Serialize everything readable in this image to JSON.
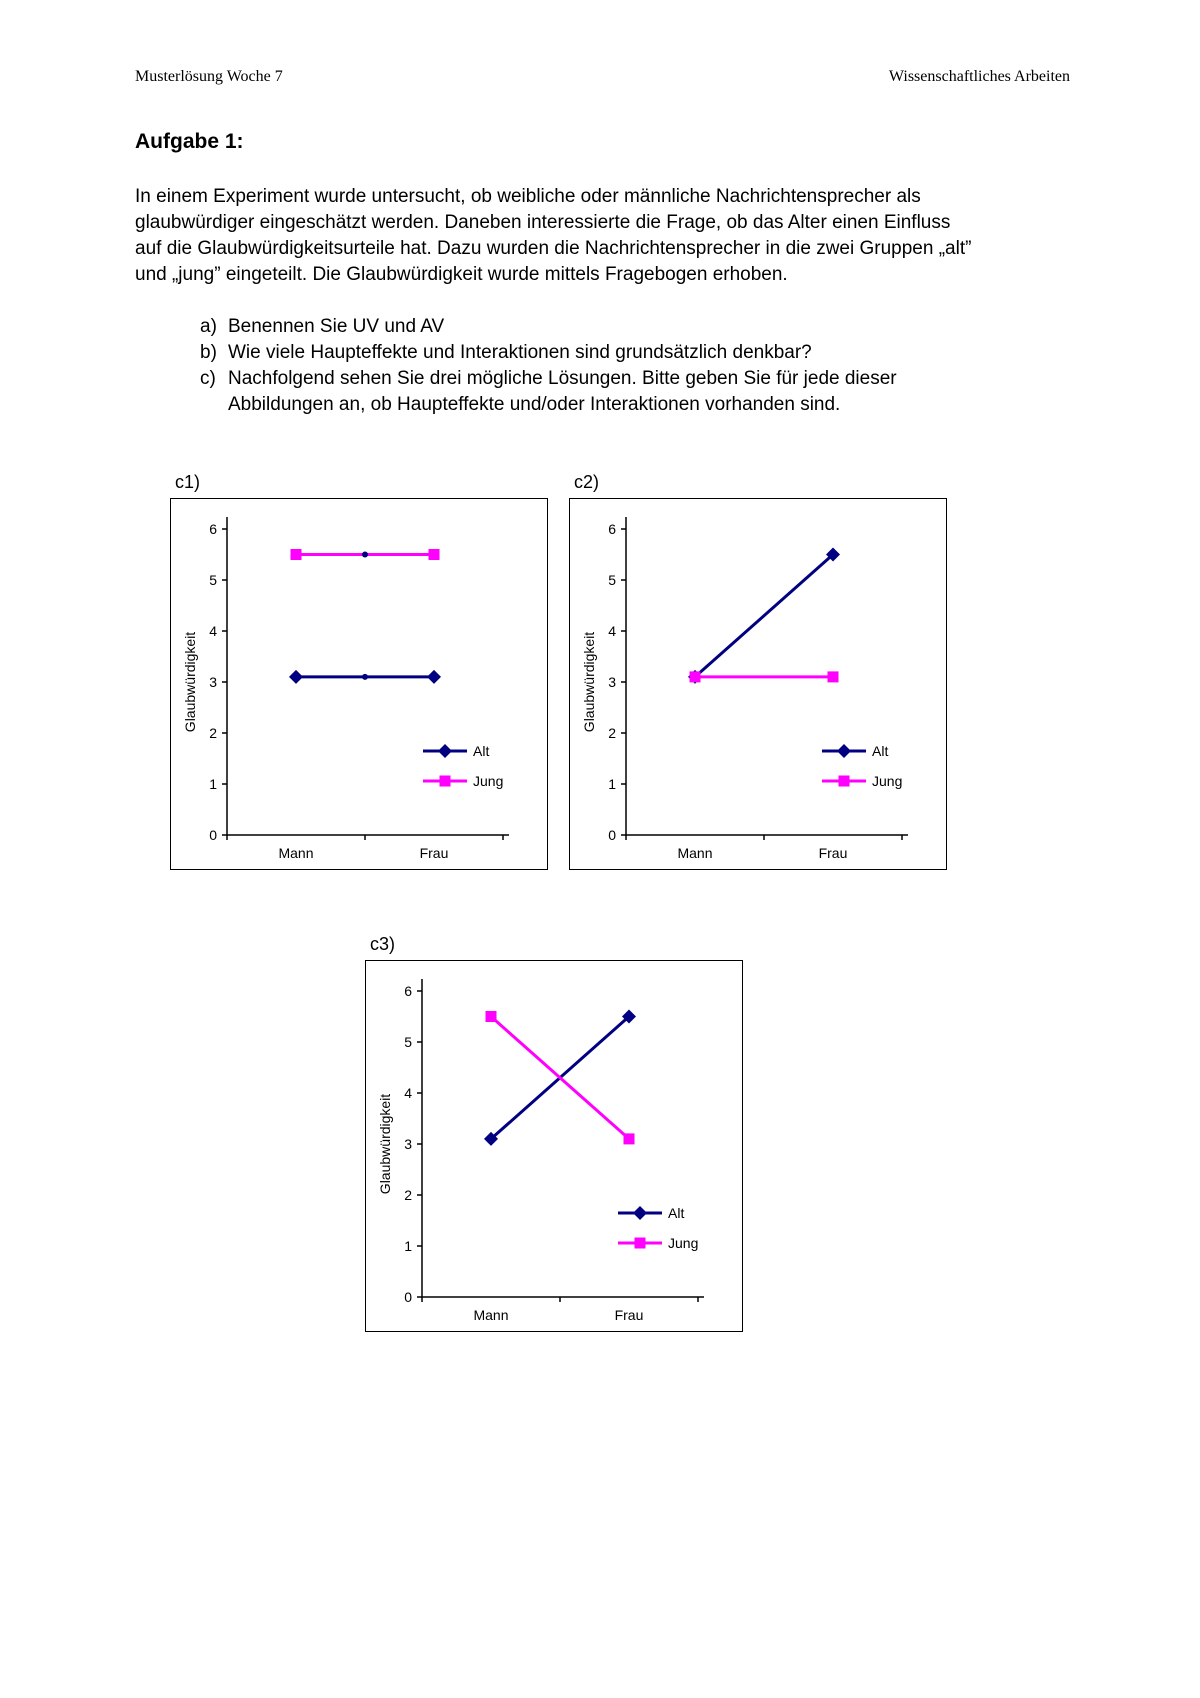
{
  "header": {
    "left": "Musterlösung Woche 7",
    "right": "Wissenschaftliches Arbeiten"
  },
  "title": "Aufgabe 1:",
  "intro": "In einem Experiment wurde untersucht, ob weibliche oder männliche Nachrichtensprecher als glaubwürdiger eingeschätzt werden. Daneben interessierte die Frage, ob das Alter einen Einfluss auf die Glaubwürdigkeitsurteile hat. Dazu wurden die Nachrichtensprecher in die zwei Gruppen „alt” und „jung” eingeteilt. Die Glaubwürdigkeit wurde mittels Fragebogen erhoben.",
  "tasks": [
    {
      "marker": "a)",
      "text": "Benennen Sie UV und AV"
    },
    {
      "marker": "b)",
      "text": "Wie viele Haupteffekte und Interaktionen sind grundsätzlich denkbar?"
    },
    {
      "marker": "c)",
      "text": "Nachfolgend sehen Sie drei mögliche Lösungen. Bitte geben Sie für jede dieser Abbildungen an, ob Haupteffekte und/oder Interaktionen vorhanden sind."
    }
  ],
  "colors": {
    "alt_line": "#000080",
    "jung_line": "#FF00FF"
  },
  "chart_data": [
    {
      "type": "line",
      "label": "c1)",
      "categories": [
        "Mann",
        "Frau"
      ],
      "series": [
        {
          "name": "Alt",
          "color": "#000080",
          "marker": "diamond",
          "values": [
            3.1,
            3.1
          ],
          "mid_marker": true
        },
        {
          "name": "Jung",
          "color": "#FF00FF",
          "marker": "square",
          "values": [
            5.5,
            5.5
          ],
          "mid_marker": true
        }
      ],
      "xlabel": "",
      "ylabel": "Glaubwürdigkeit",
      "ylim": [
        0,
        6
      ],
      "yticks": [
        0,
        1,
        2,
        3,
        4,
        5,
        6
      ],
      "grid": false,
      "legend_position": "lower-right"
    },
    {
      "type": "line",
      "label": "c2)",
      "categories": [
        "Mann",
        "Frau"
      ],
      "series": [
        {
          "name": "Alt",
          "color": "#000080",
          "marker": "diamond",
          "values": [
            3.1,
            5.5
          ]
        },
        {
          "name": "Jung",
          "color": "#FF00FF",
          "marker": "square",
          "values": [
            3.1,
            3.1
          ]
        }
      ],
      "xlabel": "",
      "ylabel": "Glaubwürdigkeit",
      "ylim": [
        0,
        6
      ],
      "yticks": [
        0,
        1,
        2,
        3,
        4,
        5,
        6
      ],
      "grid": false,
      "legend_position": "lower-right"
    },
    {
      "type": "line",
      "label": "c3)",
      "categories": [
        "Mann",
        "Frau"
      ],
      "series": [
        {
          "name": "Alt",
          "color": "#000080",
          "marker": "diamond",
          "values": [
            3.1,
            5.5
          ]
        },
        {
          "name": "Jung",
          "color": "#FF00FF",
          "marker": "square",
          "values": [
            5.5,
            3.1
          ]
        }
      ],
      "xlabel": "",
      "ylabel": "Glaubwürdigkeit",
      "ylim": [
        0,
        6
      ],
      "yticks": [
        0,
        1,
        2,
        3,
        4,
        5,
        6
      ],
      "grid": false,
      "legend_position": "lower-right"
    }
  ]
}
